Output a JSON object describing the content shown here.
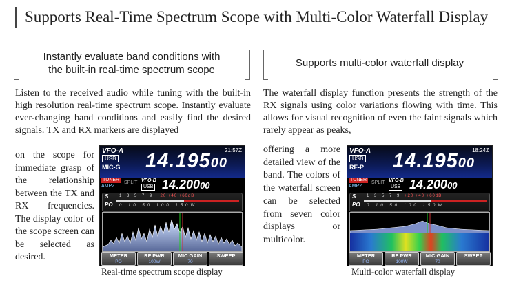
{
  "title": "Supports Real-Time Spectrum Scope with Multi-Color Waterfall Display",
  "left": {
    "subtitle_line1": "Instantly evaluate band conditions with",
    "subtitle_line2": "the built-in real-time spectrum scope",
    "paragraph": "Listen to the received audio while tuning with the built-in high resolution real-time spectrum scope. Instantly evaluate ever-changing band conditions and easily find the desired signals. TX and RX markers are displayed",
    "side_text": "on the scope for immediate grasp of the relationship between the TX and RX frequencies. The display color of the scope screen can be selected as desired.",
    "caption": "Real-time spectrum scope display"
  },
  "right": {
    "subtitle": "Supports multi-color waterfall display",
    "paragraph": "The waterfall display function presents the strength of the RX signals using color variations flowing with time. This allows for visual recognition of even the faint signals which rarely appear as peaks,",
    "side_text": "offering a more detailed view of the band. The colors of the waterfall screen can be selected from seven color displays or multicolor.",
    "caption": "Multi-color waterfall display"
  },
  "screen_left": {
    "vfo_label": "VFO-A",
    "time": "21:57Z",
    "mode": "USB",
    "tag": "MIC-G",
    "freq_main": "14.195",
    "freq_small": "00",
    "tuner": "TUNER",
    "amp": "AMP2",
    "split": "SPLIT",
    "vfo_b": "VFO-B",
    "mode_b": "USB",
    "sub_main": "14.200",
    "sub_small": "00",
    "s_label": "S",
    "po_label": "PO",
    "scale_s": "1 3 5 7 9",
    "scale_s_plus": "+20 +40 +60dB",
    "scale_po": "0 10 50 100 150W",
    "buttons": [
      {
        "label": "METER",
        "value": "PO"
      },
      {
        "label": "RF PWR",
        "value": "100W"
      },
      {
        "label": "MIC GAIN",
        "value": "70"
      },
      {
        "label": "SWEEP",
        "value": ""
      }
    ]
  },
  "screen_right": {
    "vfo_label": "VFO-A",
    "time": "18:24Z",
    "mode": "USB",
    "tag": "RF-P",
    "freq_main": "14.195",
    "freq_small": "00",
    "tuner": "TUNER",
    "amp": "AMP2",
    "split": "SPLIT",
    "vfo_b": "VFO-B",
    "mode_b": "USB",
    "sub_main": "14.200",
    "sub_small": "00",
    "s_label": "S",
    "po_label": "PO",
    "scale_s": "1 3 5 7 9",
    "scale_s_plus": "+20 +40 +60dB",
    "scale_po": "0 10 50 100 150W",
    "buttons": [
      {
        "label": "METER",
        "value": "PO"
      },
      {
        "label": "RF PWR",
        "value": "100W"
      },
      {
        "label": "MIC GAIN",
        "value": "70"
      },
      {
        "label": "SWEEP",
        "value": ""
      }
    ]
  },
  "colors": {
    "accent_blue": "#132a8a",
    "tuner_red": "#cc2222"
  }
}
